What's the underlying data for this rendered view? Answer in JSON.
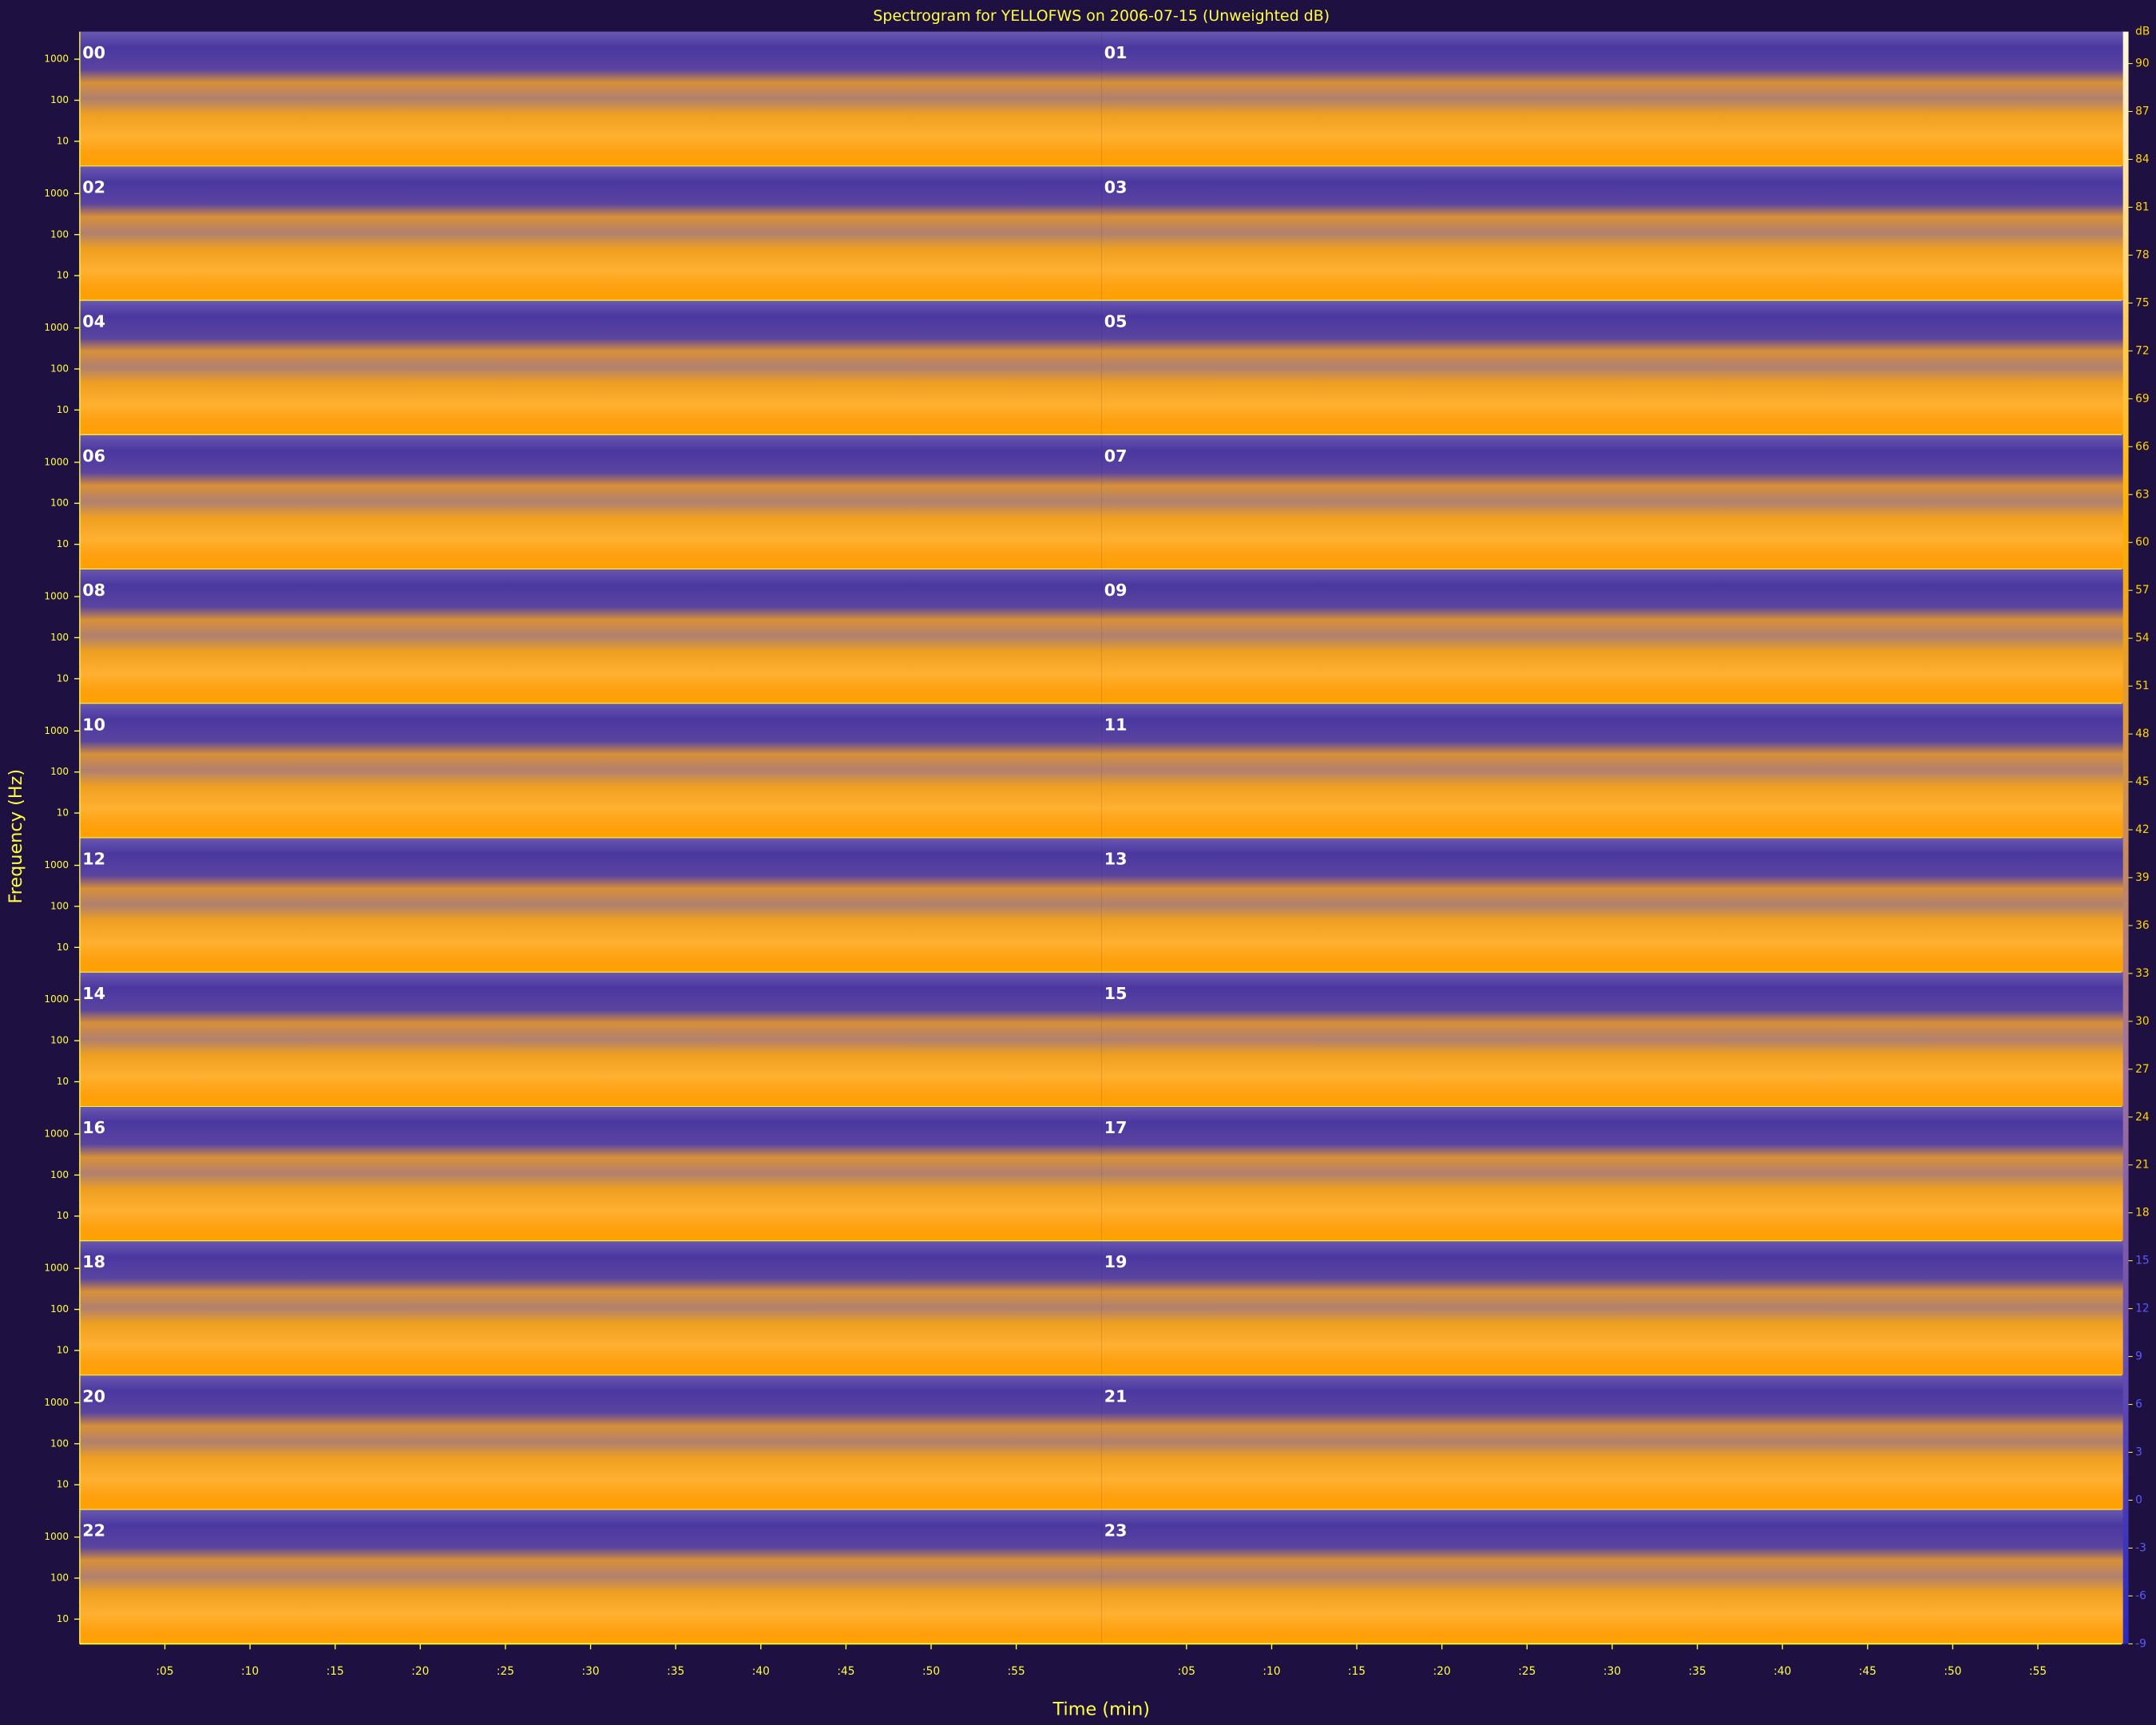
{
  "chart_data": {
    "type": "spectrogram",
    "title": "Spectrogram for YELLOFWS on 2006-07-15 (Unweighted dB)",
    "xlabel": "Time (min)",
    "ylabel": "Frequency (Hz)",
    "panels": [
      "00",
      "01",
      "02",
      "03",
      "04",
      "05",
      "06",
      "07",
      "08",
      "09",
      "10",
      "11",
      "12",
      "13",
      "14",
      "15",
      "16",
      "17",
      "18",
      "19",
      "20",
      "21",
      "22",
      "23"
    ],
    "xlim": [
      0,
      60
    ],
    "xticks": [
      {
        "value": 5,
        "label": ":05"
      },
      {
        "value": 10,
        "label": ":10"
      },
      {
        "value": 15,
        "label": ":15"
      },
      {
        "value": 20,
        "label": ":20"
      },
      {
        "value": 25,
        "label": ":25"
      },
      {
        "value": 30,
        "label": ":30"
      },
      {
        "value": 35,
        "label": ":35"
      },
      {
        "value": 40,
        "label": ":40"
      },
      {
        "value": 45,
        "label": ":45"
      },
      {
        "value": 50,
        "label": ":50"
      },
      {
        "value": 55,
        "label": ":55"
      }
    ],
    "ylim": [
      2.5,
      4700
    ],
    "yscale": "log",
    "yticks": [
      1000,
      100,
      10
    ],
    "colorbar_label": "dB",
    "clim": [
      -9,
      92
    ],
    "cticks": [
      90,
      87,
      84,
      81,
      78,
      75,
      72,
      69,
      66,
      63,
      60,
      57,
      54,
      51,
      48,
      45,
      42,
      39,
      36,
      33,
      30,
      27,
      24,
      21,
      18,
      15,
      12,
      9,
      6,
      3,
      0,
      -3,
      -6,
      -9
    ]
  }
}
